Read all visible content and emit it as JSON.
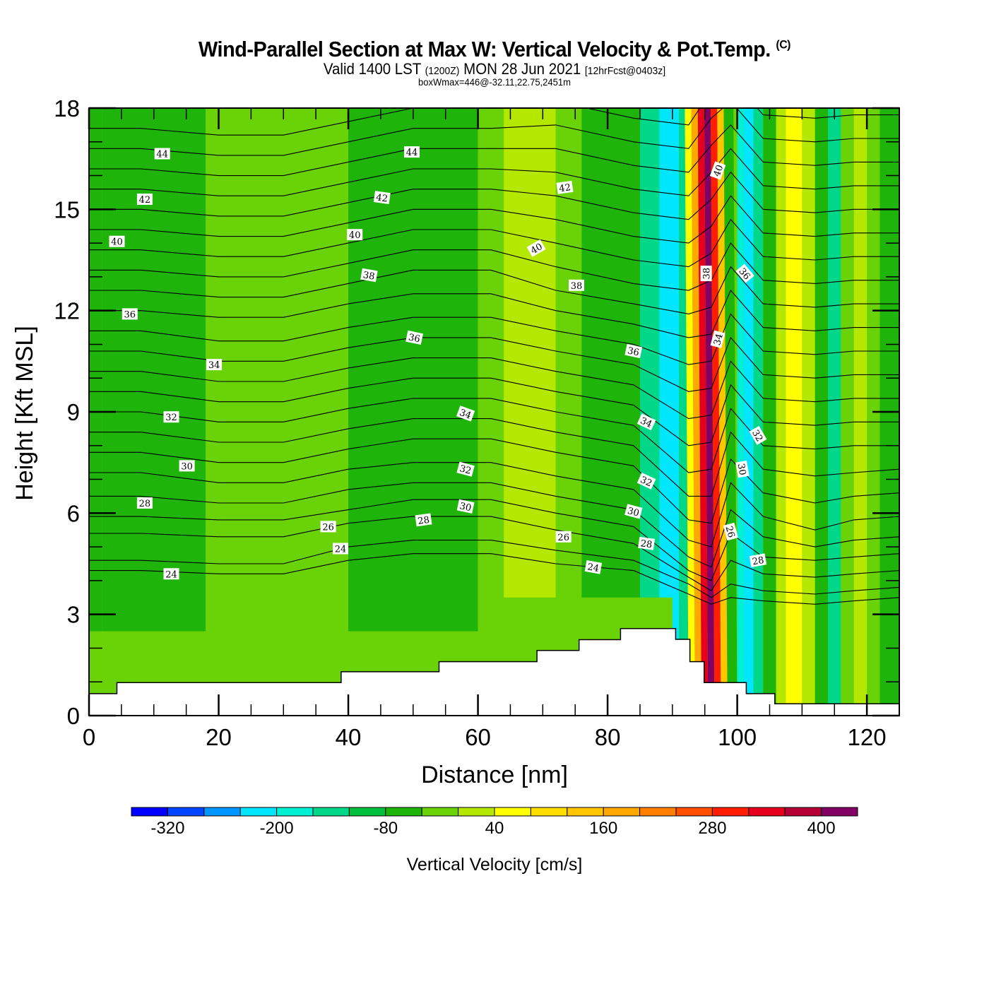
{
  "header": {
    "title": "Wind-Parallel Section at Max W: Vertical Velocity & Pot.Temp.",
    "copyright": "(C)",
    "valid_prefix": "Valid 1400 LST",
    "valid_utc": "(1200Z)",
    "valid_date": "MON 28 Jun 2021",
    "forecast": "[12hrFcst@0403z]",
    "box_info": "boxWmax=446@-32.11,22.75,2451m"
  },
  "chart_data": {
    "type": "heatmap",
    "title": "Wind-Parallel Section at Max W: Vertical Velocity & Pot.Temp.",
    "xlabel": "Distance [nm]",
    "ylabel": "Height [Kft MSL]",
    "xlim": [
      0,
      125
    ],
    "ylim": [
      0,
      18
    ],
    "xticks": [
      0,
      20,
      40,
      60,
      80,
      100,
      120
    ],
    "yticks": [
      0,
      3,
      6,
      9,
      12,
      15,
      18
    ],
    "colorbar": {
      "title": "Vertical Velocity [cm/s]",
      "tick_labels": [
        "-320",
        "-200",
        "-80",
        "40",
        "160",
        "280",
        "400"
      ],
      "levels": [
        -360,
        -320,
        -280,
        -240,
        -200,
        -160,
        -120,
        -80,
        -40,
        0,
        40,
        80,
        120,
        160,
        200,
        240,
        280,
        320,
        360,
        400,
        440
      ],
      "colors": [
        "#0000ff",
        "#0046ff",
        "#0096ff",
        "#00e6ff",
        "#00f0d2",
        "#00d788",
        "#00c03c",
        "#1eb40a",
        "#6ad308",
        "#b4e800",
        "#ffff00",
        "#ffdf00",
        "#ffc600",
        "#ffa800",
        "#ff7f00",
        "#ff4e00",
        "#ff1e00",
        "#e6001e",
        "#b40034",
        "#820064"
      ]
    },
    "w_columns": [
      {
        "x0": 0,
        "x1": 2,
        "class": 7
      },
      {
        "x0": 2,
        "x1": 18,
        "class": 7
      },
      {
        "x0": 18,
        "x1": 40,
        "class": 8
      },
      {
        "x0": 40,
        "x1": 60,
        "class": 7
      },
      {
        "x0": 60,
        "x1": 64,
        "class": 8
      },
      {
        "x0": 64,
        "x1": 72,
        "class": 9
      },
      {
        "x0": 72,
        "x1": 76,
        "class": 8
      },
      {
        "x0": 76,
        "x1": 85,
        "class": 7
      },
      {
        "x0": 85,
        "x1": 88,
        "class": 5
      },
      {
        "x0": 88,
        "x1": 91,
        "class": 3
      },
      {
        "x0": 91,
        "x1": 92.5,
        "class": 5
      },
      {
        "x0": 92.5,
        "x1": 93.5,
        "class": 10
      },
      {
        "x0": 93.5,
        "x1": 94.5,
        "class": 13
      },
      {
        "x0": 94.5,
        "x1": 95.5,
        "class": 17
      },
      {
        "x0": 95.5,
        "x1": 96.5,
        "class": 19
      },
      {
        "x0": 96.5,
        "x1": 97.5,
        "class": 16
      },
      {
        "x0": 97.5,
        "x1": 98.5,
        "class": 12
      },
      {
        "x0": 98.5,
        "x1": 100,
        "class": 7
      },
      {
        "x0": 100,
        "x1": 101,
        "class": 4
      },
      {
        "x0": 101,
        "x1": 102.5,
        "class": 3
      },
      {
        "x0": 102.5,
        "x1": 104,
        "class": 5
      },
      {
        "x0": 104,
        "x1": 106,
        "class": 7
      },
      {
        "x0": 106,
        "x1": 107.5,
        "class": 9
      },
      {
        "x0": 107.5,
        "x1": 110,
        "class": 10
      },
      {
        "x0": 110,
        "x1": 112,
        "class": 9
      },
      {
        "x0": 112,
        "x1": 114,
        "class": 7
      },
      {
        "x0": 114,
        "x1": 116,
        "class": 5
      },
      {
        "x0": 116,
        "x1": 118,
        "class": 8
      },
      {
        "x0": 118,
        "x1": 120,
        "class": 9
      },
      {
        "x0": 120,
        "x1": 122,
        "class": 8
      },
      {
        "x0": 122,
        "x1": 125,
        "class": 7
      }
    ],
    "w_lowlevel": [
      {
        "x0": 0,
        "x1": 60,
        "ztop": 2.5,
        "class": 8
      },
      {
        "x0": 60,
        "x1": 90,
        "ztop": 3.5,
        "class": 8
      }
    ],
    "terrain": {
      "x": [
        0,
        4.3,
        4.3,
        38.9,
        38.9,
        54,
        54,
        69.1,
        69.1,
        75.6,
        75.6,
        82,
        82,
        90.5,
        90.5,
        92.7,
        92.7,
        94.9,
        94.9,
        101.4,
        101.4,
        105.8,
        105.8,
        125
      ],
      "z": [
        0.65,
        0.65,
        0.98,
        0.98,
        1.3,
        1.3,
        1.6,
        1.6,
        1.93,
        1.93,
        2.25,
        2.25,
        2.58,
        2.58,
        2.26,
        2.26,
        1.6,
        1.6,
        0.98,
        0.98,
        0.65,
        0.65,
        0.35,
        0.35
      ]
    },
    "theta_series": [
      {
        "theta": 23,
        "z": [
          4.3,
          4.3,
          4.2,
          4.2,
          4.6,
          4.8,
          4.8,
          4.5,
          4.3,
          3.6,
          3.3,
          3.5,
          3.4,
          3.3,
          3.4,
          3.5
        ]
      },
      {
        "theta": 24,
        "z": [
          4.6,
          4.6,
          4.5,
          4.5,
          5.0,
          5.2,
          5.2,
          4.9,
          4.6,
          3.9,
          3.5,
          3.9,
          3.7,
          3.6,
          3.7,
          3.8
        ]
      },
      {
        "theta": 25,
        "z": [
          5.4,
          5.4,
          5.3,
          5.3,
          5.7,
          5.9,
          5.9,
          5.5,
          5.1,
          4.1,
          3.7,
          4.6,
          4.2,
          4.1,
          4.2,
          4.3
        ]
      },
      {
        "theta": 26,
        "z": [
          5.9,
          5.9,
          5.8,
          5.8,
          6.1,
          6.4,
          6.4,
          6.0,
          5.6,
          4.3,
          4.0,
          5.4,
          4.7,
          4.6,
          4.7,
          4.8
        ]
      },
      {
        "theta": 27,
        "z": [
          6.5,
          6.5,
          6.3,
          6.3,
          6.7,
          6.9,
          6.9,
          6.5,
          6.1,
          4.7,
          4.4,
          6.1,
          5.3,
          5.0,
          5.2,
          5.3
        ]
      },
      {
        "theta": 28,
        "z": [
          7.2,
          7.2,
          6.9,
          6.9,
          7.3,
          7.5,
          7.5,
          7.1,
          6.7,
          5.2,
          5.0,
          6.9,
          5.9,
          5.5,
          5.8,
          5.9
        ]
      },
      {
        "theta": 29,
        "z": [
          7.8,
          7.8,
          7.5,
          7.5,
          7.9,
          8.2,
          8.2,
          7.8,
          7.4,
          5.8,
          5.7,
          7.6,
          6.6,
          6.3,
          6.5,
          6.6
        ]
      },
      {
        "theta": 30,
        "z": [
          8.4,
          8.4,
          8.1,
          8.1,
          8.5,
          8.8,
          8.8,
          8.4,
          8.0,
          6.5,
          6.5,
          8.4,
          7.3,
          7.1,
          7.2,
          7.3
        ]
      },
      {
        "theta": 31,
        "z": [
          9.0,
          9.0,
          8.7,
          8.7,
          9.1,
          9.4,
          9.4,
          9.0,
          8.6,
          7.2,
          7.3,
          9.1,
          8.0,
          7.9,
          8.0,
          8.0
        ]
      },
      {
        "theta": 32,
        "z": [
          9.6,
          9.6,
          9.3,
          9.3,
          9.7,
          10.0,
          10.0,
          9.6,
          9.2,
          8.0,
          8.1,
          9.8,
          8.7,
          8.6,
          8.7,
          8.7
        ]
      },
      {
        "theta": 33,
        "z": [
          10.2,
          10.2,
          9.9,
          9.9,
          10.3,
          10.6,
          10.6,
          10.2,
          9.8,
          8.8,
          8.9,
          10.5,
          9.4,
          9.3,
          9.4,
          9.4
        ]
      },
      {
        "theta": 34,
        "z": [
          10.8,
          10.8,
          10.5,
          10.5,
          10.9,
          11.2,
          11.2,
          10.8,
          10.4,
          9.6,
          9.7,
          11.2,
          10.1,
          10.0,
          10.1,
          10.1
        ]
      },
      {
        "theta": 35,
        "z": [
          11.4,
          11.4,
          11.1,
          11.1,
          11.5,
          11.8,
          11.8,
          11.4,
          11.0,
          10.4,
          10.5,
          11.9,
          10.8,
          10.7,
          10.8,
          10.8
        ]
      },
      {
        "theta": 36,
        "z": [
          12.0,
          12.0,
          11.8,
          11.8,
          12.2,
          12.5,
          12.5,
          12.0,
          11.6,
          11.2,
          11.3,
          12.6,
          11.5,
          11.4,
          11.5,
          11.5
        ]
      },
      {
        "theta": 37,
        "z": [
          12.6,
          12.6,
          12.4,
          12.4,
          12.8,
          13.2,
          13.2,
          12.6,
          12.2,
          11.9,
          12.1,
          13.3,
          12.2,
          12.1,
          12.2,
          12.2
        ]
      },
      {
        "theta": 38,
        "z": [
          13.2,
          13.2,
          13.0,
          13.0,
          13.4,
          13.8,
          13.8,
          13.3,
          12.8,
          12.6,
          12.9,
          14.0,
          12.9,
          12.8,
          12.9,
          12.9
        ]
      },
      {
        "theta": 39,
        "z": [
          13.8,
          13.8,
          13.6,
          13.6,
          14.0,
          14.4,
          14.4,
          14.0,
          13.5,
          13.3,
          13.7,
          14.7,
          13.6,
          13.5,
          13.6,
          13.6
        ]
      },
      {
        "theta": 40,
        "z": [
          14.4,
          14.4,
          14.2,
          14.2,
          14.6,
          15.0,
          15.0,
          14.7,
          14.2,
          14.0,
          14.5,
          15.4,
          14.3,
          14.2,
          14.3,
          14.3
        ]
      },
      {
        "theta": 41,
        "z": [
          15.0,
          15.0,
          14.8,
          14.8,
          15.2,
          15.6,
          15.6,
          15.4,
          14.9,
          14.7,
          15.3,
          16.1,
          15.0,
          14.9,
          15.0,
          15.0
        ]
      },
      {
        "theta": 42,
        "z": [
          15.6,
          15.6,
          15.4,
          15.4,
          15.8,
          16.2,
          16.2,
          16.1,
          15.6,
          15.4,
          16.1,
          16.8,
          15.7,
          15.6,
          15.7,
          15.7
        ]
      },
      {
        "theta": 43,
        "z": [
          16.2,
          16.2,
          16.0,
          16.0,
          16.4,
          16.8,
          16.8,
          16.8,
          16.3,
          16.1,
          16.9,
          17.5,
          16.4,
          16.3,
          16.4,
          16.4
        ]
      },
      {
        "theta": 44,
        "z": [
          16.8,
          16.8,
          16.6,
          16.6,
          17.0,
          17.4,
          17.4,
          17.5,
          17.0,
          16.8,
          17.7,
          18.2,
          17.1,
          17.0,
          17.1,
          17.1
        ]
      },
      {
        "theta": 45,
        "z": [
          17.4,
          17.4,
          17.2,
          17.2,
          17.6,
          18.0,
          18.0,
          18.2,
          17.7,
          17.5,
          18.5,
          18.9,
          17.8,
          17.7,
          17.8,
          17.8
        ]
      }
    ],
    "theta_x": [
      0,
      8,
      20,
      30,
      40,
      50,
      62,
      72,
      84,
      92.5,
      96,
      99,
      104,
      112,
      118,
      125
    ],
    "theta_labels": [
      {
        "text": "44",
        "x": 11.3,
        "z": 16.65,
        "rot": 0
      },
      {
        "text": "42",
        "x": 8.6,
        "z": 15.3,
        "rot": 0
      },
      {
        "text": "40",
        "x": 4.3,
        "z": 14.05,
        "rot": 0
      },
      {
        "text": "36",
        "x": 6.3,
        "z": 11.9,
        "rot": 0
      },
      {
        "text": "34",
        "x": 19.3,
        "z": 10.4,
        "rot": 0
      },
      {
        "text": "32",
        "x": 12.7,
        "z": 8.85,
        "rot": 0
      },
      {
        "text": "30",
        "x": 15.1,
        "z": 7.4,
        "rot": 0
      },
      {
        "text": "28",
        "x": 8.6,
        "z": 6.3,
        "rot": 0
      },
      {
        "text": "24",
        "x": 12.7,
        "z": 4.2,
        "rot": 0
      },
      {
        "text": "44",
        "x": 49.8,
        "z": 16.7,
        "rot": 0
      },
      {
        "text": "42",
        "x": 45.2,
        "z": 15.35,
        "rot": 8
      },
      {
        "text": "40",
        "x": 41.0,
        "z": 14.25,
        "rot": 0
      },
      {
        "text": "38",
        "x": 43.2,
        "z": 13.05,
        "rot": 10
      },
      {
        "text": "36",
        "x": 50.2,
        "z": 11.2,
        "rot": 12
      },
      {
        "text": "34",
        "x": 58.1,
        "z": 8.95,
        "rot": 20
      },
      {
        "text": "32",
        "x": 58.1,
        "z": 7.3,
        "rot": 15
      },
      {
        "text": "30",
        "x": 58.1,
        "z": 6.2,
        "rot": 12
      },
      {
        "text": "28",
        "x": 51.6,
        "z": 5.8,
        "rot": -8
      },
      {
        "text": "26",
        "x": 36.9,
        "z": 5.6,
        "rot": 0
      },
      {
        "text": "24",
        "x": 38.8,
        "z": 4.95,
        "rot": 0
      },
      {
        "text": "42",
        "x": 73.4,
        "z": 15.65,
        "rot": -8
      },
      {
        "text": "40",
        "x": 69.0,
        "z": 13.85,
        "rot": -30
      },
      {
        "text": "38",
        "x": 75.2,
        "z": 12.75,
        "rot": 0
      },
      {
        "text": "36",
        "x": 84.0,
        "z": 10.8,
        "rot": 12
      },
      {
        "text": "34",
        "x": 86.0,
        "z": 8.7,
        "rot": 25
      },
      {
        "text": "32",
        "x": 86.0,
        "z": 6.95,
        "rot": 25
      },
      {
        "text": "30",
        "x": 84.0,
        "z": 6.05,
        "rot": 15
      },
      {
        "text": "28",
        "x": 86.0,
        "z": 5.1,
        "rot": 8
      },
      {
        "text": "26",
        "x": 73.2,
        "z": 5.3,
        "rot": 0
      },
      {
        "text": "24",
        "x": 77.8,
        "z": 4.4,
        "rot": 10
      },
      {
        "text": "40",
        "x": 97.0,
        "z": 16.15,
        "rot": -70
      },
      {
        "text": "38",
        "x": 95.2,
        "z": 13.1,
        "rot": -90
      },
      {
        "text": "34",
        "x": 97.0,
        "z": 11.15,
        "rot": -75
      },
      {
        "text": "36",
        "x": 101.2,
        "z": 13.1,
        "rot": 50
      },
      {
        "text": "32",
        "x": 103.2,
        "z": 8.3,
        "rot": 60
      },
      {
        "text": "30",
        "x": 100.8,
        "z": 7.3,
        "rot": 80
      },
      {
        "text": "26",
        "x": 99.0,
        "z": 5.45,
        "rot": 75
      },
      {
        "text": "28",
        "x": 103.2,
        "z": 4.6,
        "rot": -10
      }
    ]
  }
}
